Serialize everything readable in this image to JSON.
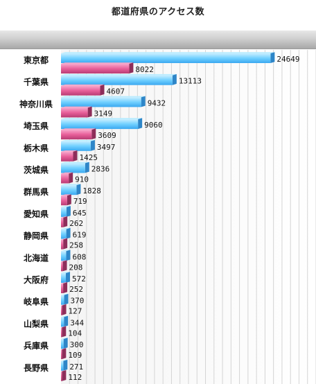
{
  "chart_data": {
    "type": "bar",
    "orientation": "horizontal",
    "title": "都道府県のアクセス数",
    "categories": [
      "東京都",
      "千葉県",
      "神奈川県",
      "埼玉県",
      "栃木県",
      "茨城県",
      "群馬県",
      "愛知県",
      "静岡県",
      "北海道",
      "大阪府",
      "岐阜県",
      "山梨県",
      "兵庫県",
      "長野県"
    ],
    "series": [
      {
        "values": [
          24649,
          13113,
          9432,
          9060,
          3497,
          2836,
          1828,
          645,
          619,
          608,
          572,
          370,
          344,
          300,
          271
        ],
        "color": "#66ccff"
      },
      {
        "values": [
          8022,
          4607,
          3149,
          3609,
          1425,
          910,
          719,
          262,
          258,
          208,
          252,
          127,
          104,
          109,
          112
        ],
        "color": "#e8609a"
      }
    ],
    "xlim": [
      0,
      30000
    ],
    "grid": true,
    "data_labels": true
  }
}
